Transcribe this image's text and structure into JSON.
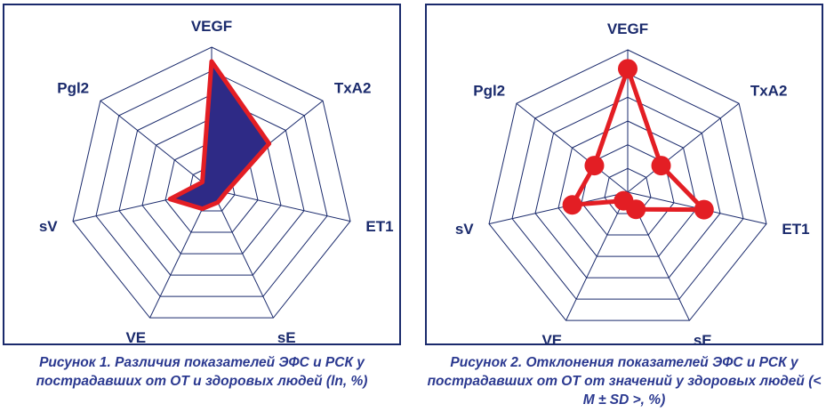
{
  "chart_data": [
    {
      "type": "radar",
      "categories": [
        "VEGF",
        "TxA2",
        "ET1",
        "sE",
        "VE",
        "sV",
        "Pgl2"
      ],
      "rmax": 6,
      "grid": true,
      "series": [
        {
          "values": [
            5.4,
            3.1,
            0.6,
            0.6,
            0.9,
            1.8,
            0.5
          ],
          "style": "filled",
          "fill": "#2e2a86",
          "stroke": "#e31e24"
        }
      ],
      "caption": "Рисунок 1. Различия показателей ЭФС и РСК у пострадавших от ОТ и здоровых людей (ln, %)"
    },
    {
      "type": "radar",
      "categories": [
        "VEGF",
        "TxA2",
        "ET1",
        "sE",
        "VE",
        "sV",
        "Pgl2"
      ],
      "rmax": 6,
      "grid": true,
      "series": [
        {
          "values": [
            5.2,
            1.8,
            3.3,
            0.8,
            0.4,
            2.4,
            1.8
          ],
          "style": "markers",
          "fill": "#e31e24",
          "stroke": "#e31e24"
        }
      ],
      "caption": "Рисунок 2. Отклонения показателей ЭФС и РСК у пострадавших от ОТ от значений у здоровых людей (< M ± SD >, %)"
    }
  ],
  "colors": {
    "grid": "#1a2a6c",
    "caption": "#2b3990",
    "accent": "#e31e24"
  }
}
